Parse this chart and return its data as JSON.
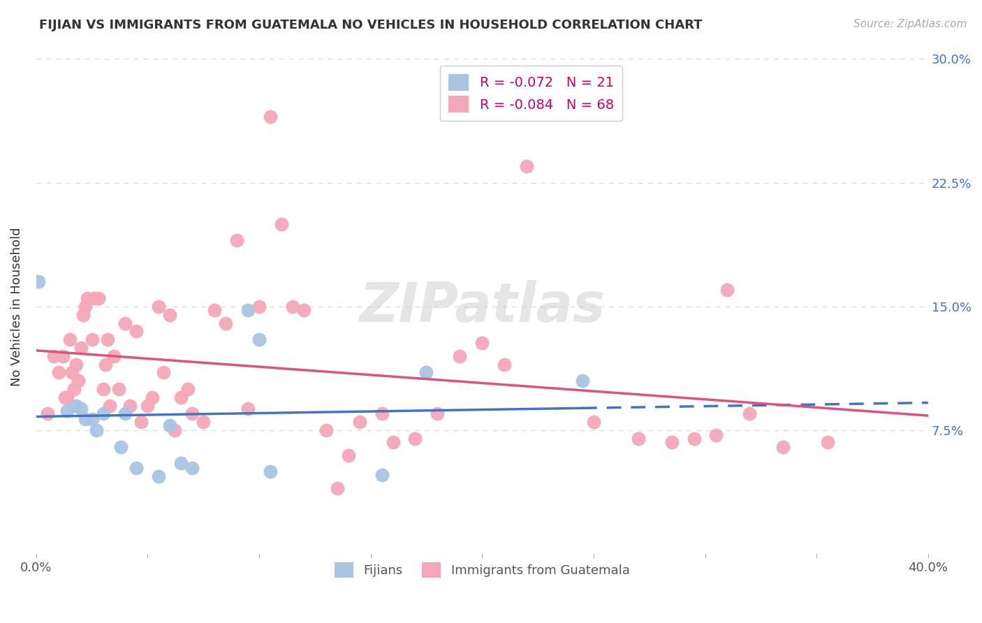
{
  "title": "FIJIAN VS IMMIGRANTS FROM GUATEMALA NO VEHICLES IN HOUSEHOLD CORRELATION CHART",
  "source": "Source: ZipAtlas.com",
  "ylabel": "No Vehicles in Household",
  "x_min": 0.0,
  "x_max": 0.4,
  "y_min": 0.0,
  "y_max": 0.3,
  "x_ticks": [
    0.0,
    0.05,
    0.1,
    0.15,
    0.2,
    0.25,
    0.3,
    0.35,
    0.4
  ],
  "y_ticks": [
    0.0,
    0.075,
    0.15,
    0.225,
    0.3
  ],
  "watermark": "ZIPatlas",
  "fijian_R": "-0.072",
  "fijian_N": "21",
  "guatemala_R": "-0.084",
  "guatemala_N": "68",
  "fijian_color": "#a8c4e0",
  "fijian_line_color": "#4472c4",
  "guatemala_color": "#f4a7b9",
  "guatemala_line_color": "#e05080",
  "fijian_x": [
    0.001,
    0.014,
    0.018,
    0.02,
    0.022,
    0.025,
    0.027,
    0.03,
    0.038,
    0.04,
    0.045,
    0.055,
    0.06,
    0.065,
    0.07,
    0.095,
    0.1,
    0.105,
    0.155,
    0.175,
    0.245
  ],
  "fijian_y": [
    0.165,
    0.087,
    0.09,
    0.088,
    0.082,
    0.082,
    0.075,
    0.085,
    0.065,
    0.085,
    0.052,
    0.047,
    0.078,
    0.055,
    0.052,
    0.148,
    0.13,
    0.05,
    0.048,
    0.11,
    0.105
  ],
  "guatemala_x": [
    0.005,
    0.008,
    0.01,
    0.012,
    0.013,
    0.014,
    0.015,
    0.016,
    0.017,
    0.018,
    0.019,
    0.02,
    0.021,
    0.022,
    0.023,
    0.025,
    0.026,
    0.028,
    0.03,
    0.031,
    0.032,
    0.033,
    0.035,
    0.037,
    0.04,
    0.042,
    0.045,
    0.047,
    0.05,
    0.052,
    0.055,
    0.057,
    0.06,
    0.062,
    0.065,
    0.068,
    0.07,
    0.075,
    0.08,
    0.085,
    0.09,
    0.095,
    0.1,
    0.105,
    0.11,
    0.115,
    0.12,
    0.13,
    0.135,
    0.14,
    0.145,
    0.155,
    0.16,
    0.17,
    0.18,
    0.19,
    0.2,
    0.21,
    0.22,
    0.25,
    0.27,
    0.285,
    0.295,
    0.305,
    0.31,
    0.32,
    0.335,
    0.355
  ],
  "guatemala_y": [
    0.085,
    0.12,
    0.11,
    0.12,
    0.095,
    0.095,
    0.13,
    0.11,
    0.1,
    0.115,
    0.105,
    0.125,
    0.145,
    0.15,
    0.155,
    0.13,
    0.155,
    0.155,
    0.1,
    0.115,
    0.13,
    0.09,
    0.12,
    0.1,
    0.14,
    0.09,
    0.135,
    0.08,
    0.09,
    0.095,
    0.15,
    0.11,
    0.145,
    0.075,
    0.095,
    0.1,
    0.085,
    0.08,
    0.148,
    0.14,
    0.19,
    0.088,
    0.15,
    0.265,
    0.2,
    0.15,
    0.148,
    0.075,
    0.04,
    0.06,
    0.08,
    0.085,
    0.068,
    0.07,
    0.085,
    0.12,
    0.128,
    0.115,
    0.235,
    0.08,
    0.07,
    0.068,
    0.07,
    0.072,
    0.16,
    0.085,
    0.065,
    0.068
  ],
  "background_color": "#ffffff",
  "grid_color": "#dddddd"
}
